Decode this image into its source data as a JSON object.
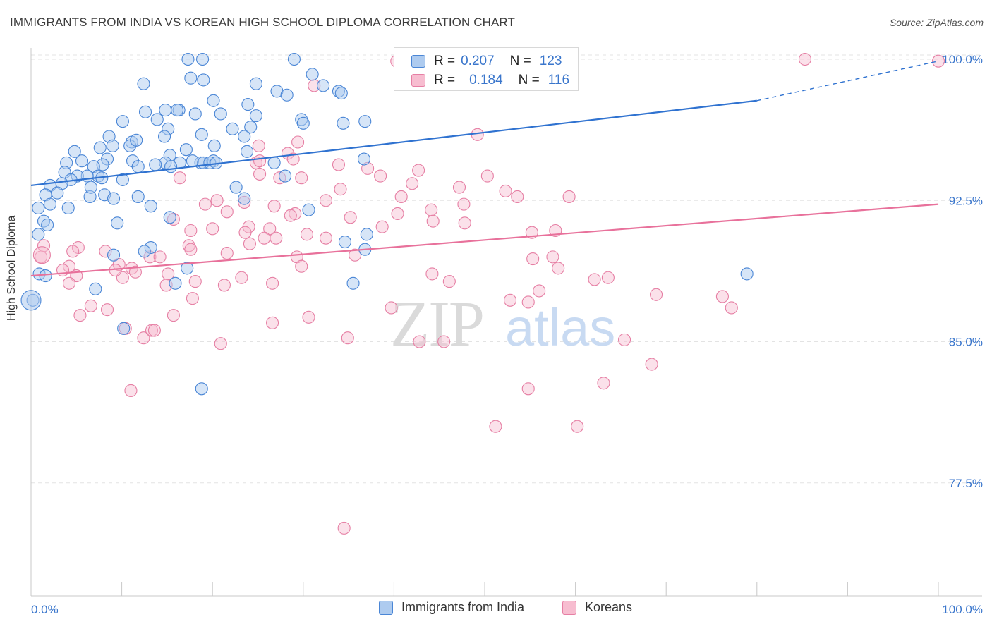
{
  "header": {
    "title": "IMMIGRANTS FROM INDIA VS KOREAN HIGH SCHOOL DIPLOMA CORRELATION CHART",
    "source": "Source: ZipAtlas.com"
  },
  "watermark": {
    "zip": "ZIP",
    "atlas": "atlas"
  },
  "colors": {
    "india_fill": "#aecbef",
    "india_stroke": "#4a86d6",
    "india_line": "#2f72d0",
    "korean_fill": "#f7bdd0",
    "korean_stroke": "#e67fa4",
    "korean_line": "#e8719b",
    "axis_text": "#3a76cc"
  },
  "legend_top": {
    "india": {
      "r_label": "R =",
      "r_value": "0.207",
      "n_label": "N =",
      "n_value": "123"
    },
    "korean": {
      "r_label": "R =",
      "r_value": "0.184",
      "n_label": "N =",
      "n_value": "116"
    }
  },
  "legend_bottom": {
    "india": "Immigrants from India",
    "korean": "Koreans"
  },
  "chart_data": {
    "type": "scatter",
    "title": "IMMIGRANTS FROM INDIA VS KOREAN HIGH SCHOOL DIPLOMA CORRELATION CHART",
    "ylabel": "High School Diploma",
    "xlabel": "",
    "x_ticks": [
      "0.0%",
      "100.0%"
    ],
    "y_ticks": [
      "100.0%",
      "92.5%",
      "85.0%",
      "77.5%"
    ],
    "y_tick_values": [
      100.0,
      92.5,
      85.0,
      77.5
    ],
    "xlim": [
      0,
      100
    ],
    "ylim": [
      71.5,
      100.6
    ],
    "grid": true,
    "legend_position": "top-center",
    "series": [
      {
        "name": "Immigrants from India",
        "r": 0.207,
        "n": 123,
        "trend": {
          "x": [
            0,
            80
          ],
          "y": [
            93.3,
            97.8
          ],
          "dashed_to": [
            100,
            99.9
          ]
        },
        "points": [
          [
            17.3,
            100.0
          ],
          [
            18.9,
            100.0
          ],
          [
            29.0,
            100.0
          ],
          [
            17.6,
            99.0
          ],
          [
            19.0,
            98.9
          ],
          [
            31.0,
            99.2
          ],
          [
            12.4,
            98.7
          ],
          [
            24.8,
            98.7
          ],
          [
            32.2,
            98.6
          ],
          [
            33.9,
            98.3
          ],
          [
            27.1,
            98.3
          ],
          [
            28.2,
            98.1
          ],
          [
            34.2,
            98.2
          ],
          [
            20.1,
            97.8
          ],
          [
            23.9,
            97.6
          ],
          [
            14.8,
            97.3
          ],
          [
            12.6,
            97.2
          ],
          [
            16.3,
            97.3
          ],
          [
            16.1,
            97.3
          ],
          [
            20.9,
            97.1
          ],
          [
            18.1,
            97.1
          ],
          [
            24.8,
            97.0
          ],
          [
            13.9,
            96.8
          ],
          [
            29.8,
            96.8
          ],
          [
            10.1,
            96.7
          ],
          [
            34.4,
            96.6
          ],
          [
            36.8,
            96.7
          ],
          [
            30.0,
            96.6
          ],
          [
            15.1,
            96.3
          ],
          [
            22.2,
            96.3
          ],
          [
            24.2,
            96.4
          ],
          [
            14.7,
            95.9
          ],
          [
            8.6,
            95.9
          ],
          [
            18.8,
            96.0
          ],
          [
            23.5,
            95.9
          ],
          [
            11.1,
            95.6
          ],
          [
            10.9,
            95.4
          ],
          [
            11.6,
            95.7
          ],
          [
            9.0,
            95.4
          ],
          [
            7.6,
            95.3
          ],
          [
            4.8,
            95.1
          ],
          [
            17.1,
            95.2
          ],
          [
            20.2,
            95.4
          ],
          [
            23.8,
            95.1
          ],
          [
            15.3,
            94.9
          ],
          [
            8.4,
            94.7
          ],
          [
            11.2,
            94.6
          ],
          [
            14.8,
            94.5
          ],
          [
            5.6,
            94.6
          ],
          [
            3.9,
            94.5
          ],
          [
            7.9,
            94.4
          ],
          [
            18.7,
            94.5
          ],
          [
            16.4,
            94.5
          ],
          [
            17.8,
            94.6
          ],
          [
            19.0,
            94.5
          ],
          [
            11.8,
            94.3
          ],
          [
            13.7,
            94.4
          ],
          [
            15.4,
            94.3
          ],
          [
            6.9,
            94.3
          ],
          [
            7.4,
            93.8
          ],
          [
            3.7,
            94.0
          ],
          [
            6.2,
            93.8
          ],
          [
            5.1,
            93.8
          ],
          [
            7.8,
            93.7
          ],
          [
            4.4,
            93.6
          ],
          [
            2.1,
            93.3
          ],
          [
            3.4,
            93.4
          ],
          [
            1.6,
            92.8
          ],
          [
            2.9,
            92.9
          ],
          [
            8.1,
            92.8
          ],
          [
            6.5,
            92.7
          ],
          [
            9.1,
            92.6
          ],
          [
            11.8,
            92.7
          ],
          [
            23.5,
            92.6
          ],
          [
            10.1,
            93.6
          ],
          [
            6.6,
            93.2
          ],
          [
            0.8,
            92.1
          ],
          [
            2.1,
            92.3
          ],
          [
            4.1,
            92.1
          ],
          [
            13.2,
            92.2
          ],
          [
            30.6,
            92.0
          ],
          [
            1.4,
            91.4
          ],
          [
            15.3,
            91.6
          ],
          [
            9.5,
            91.3
          ],
          [
            1.8,
            91.2
          ],
          [
            0.8,
            90.7
          ],
          [
            37.0,
            90.7
          ],
          [
            34.6,
            90.3
          ],
          [
            13.2,
            90.0
          ],
          [
            9.1,
            89.6
          ],
          [
            12.5,
            89.8
          ],
          [
            36.8,
            89.9
          ],
          [
            17.2,
            88.9
          ],
          [
            0.9,
            88.6
          ],
          [
            1.6,
            88.5
          ],
          [
            7.1,
            87.8
          ],
          [
            15.9,
            88.1
          ],
          [
            35.5,
            88.1
          ],
          [
            0.2,
            87.2
          ],
          [
            10.2,
            85.7
          ],
          [
            18.8,
            82.5
          ],
          [
            78.9,
            88.6
          ],
          [
            36.7,
            94.7
          ],
          [
            26.8,
            94.5
          ],
          [
            20.1,
            94.6
          ],
          [
            28.0,
            93.8
          ],
          [
            22.6,
            93.2
          ],
          [
            19.7,
            94.5
          ],
          [
            20.4,
            94.5
          ]
        ]
      },
      {
        "name": "Koreans",
        "r": 0.184,
        "n": 116,
        "trend": {
          "x": [
            0,
            100
          ],
          "y": [
            88.5,
            92.3
          ]
        },
        "points": [
          [
            40.3,
            99.9
          ],
          [
            85.3,
            100.0
          ],
          [
            100.0,
            99.9
          ],
          [
            31.2,
            98.6
          ],
          [
            49.2,
            96.0
          ],
          [
            29.4,
            95.6
          ],
          [
            25.1,
            95.4
          ],
          [
            28.3,
            95.0
          ],
          [
            28.9,
            94.7
          ],
          [
            24.8,
            94.5
          ],
          [
            25.2,
            94.6
          ],
          [
            33.9,
            94.4
          ],
          [
            42.7,
            94.1
          ],
          [
            37.1,
            94.2
          ],
          [
            38.5,
            93.8
          ],
          [
            25.2,
            93.9
          ],
          [
            50.3,
            93.8
          ],
          [
            27.4,
            93.7
          ],
          [
            29.8,
            93.7
          ],
          [
            16.4,
            93.7
          ],
          [
            42.0,
            93.4
          ],
          [
            47.2,
            93.2
          ],
          [
            34.1,
            93.1
          ],
          [
            52.3,
            93.0
          ],
          [
            40.8,
            92.7
          ],
          [
            53.6,
            92.7
          ],
          [
            59.3,
            92.7
          ],
          [
            32.5,
            92.5
          ],
          [
            20.5,
            92.5
          ],
          [
            23.5,
            92.4
          ],
          [
            26.8,
            92.2
          ],
          [
            47.7,
            92.3
          ],
          [
            44.1,
            92.0
          ],
          [
            40.4,
            91.8
          ],
          [
            19.2,
            92.3
          ],
          [
            21.6,
            91.9
          ],
          [
            29.1,
            91.8
          ],
          [
            35.2,
            91.6
          ],
          [
            28.6,
            91.7
          ],
          [
            15.7,
            91.5
          ],
          [
            24.0,
            91.1
          ],
          [
            26.3,
            91.0
          ],
          [
            17.6,
            90.9
          ],
          [
            38.7,
            91.1
          ],
          [
            20.0,
            91.0
          ],
          [
            23.6,
            90.8
          ],
          [
            25.7,
            90.5
          ],
          [
            44.3,
            91.4
          ],
          [
            47.8,
            91.3
          ],
          [
            57.8,
            90.9
          ],
          [
            55.2,
            90.8
          ],
          [
            30.4,
            90.7
          ],
          [
            32.5,
            90.5
          ],
          [
            27.0,
            90.5
          ],
          [
            24.1,
            90.2
          ],
          [
            17.4,
            90.1
          ],
          [
            5.2,
            90.0
          ],
          [
            4.6,
            89.8
          ],
          [
            8.2,
            89.8
          ],
          [
            13.1,
            89.5
          ],
          [
            14.2,
            89.5
          ],
          [
            17.6,
            89.9
          ],
          [
            21.6,
            89.7
          ],
          [
            29.3,
            89.5
          ],
          [
            29.8,
            89.0
          ],
          [
            35.7,
            89.6
          ],
          [
            55.3,
            89.4
          ],
          [
            57.5,
            89.5
          ],
          [
            9.7,
            89.1
          ],
          [
            11.1,
            88.9
          ],
          [
            4.2,
            89.0
          ],
          [
            3.5,
            88.8
          ],
          [
            5.0,
            88.5
          ],
          [
            10.1,
            88.4
          ],
          [
            9.3,
            88.8
          ],
          [
            11.5,
            88.7
          ],
          [
            15.1,
            88.6
          ],
          [
            18.1,
            88.2
          ],
          [
            21.3,
            88.0
          ],
          [
            23.2,
            88.4
          ],
          [
            26.6,
            88.1
          ],
          [
            44.2,
            88.6
          ],
          [
            46.1,
            88.2
          ],
          [
            56.0,
            87.7
          ],
          [
            62.1,
            88.3
          ],
          [
            4.2,
            88.1
          ],
          [
            14.9,
            88.0
          ],
          [
            17.8,
            87.3
          ],
          [
            8.4,
            86.7
          ],
          [
            6.6,
            86.9
          ],
          [
            5.4,
            86.4
          ],
          [
            15.7,
            86.4
          ],
          [
            30.6,
            86.3
          ],
          [
            39.7,
            86.8
          ],
          [
            52.8,
            87.2
          ],
          [
            54.8,
            87.1
          ],
          [
            68.9,
            87.5
          ],
          [
            58.1,
            88.9
          ],
          [
            63.6,
            88.4
          ],
          [
            26.6,
            86.0
          ],
          [
            10.4,
            85.7
          ],
          [
            12.4,
            85.2
          ],
          [
            13.3,
            85.6
          ],
          [
            20.9,
            84.9
          ],
          [
            34.9,
            85.2
          ],
          [
            42.8,
            85.0
          ],
          [
            45.5,
            85.0
          ],
          [
            65.4,
            85.1
          ],
          [
            68.4,
            83.8
          ],
          [
            63.1,
            82.8
          ],
          [
            11.0,
            82.4
          ],
          [
            54.8,
            82.5
          ],
          [
            60.2,
            80.5
          ],
          [
            51.2,
            80.5
          ],
          [
            77.2,
            86.8
          ],
          [
            76.2,
            87.4
          ],
          [
            1.4,
            90.1
          ],
          [
            1.1,
            89.5
          ],
          [
            34.5,
            75.1
          ],
          [
            13.6,
            85.6
          ]
        ]
      }
    ]
  }
}
